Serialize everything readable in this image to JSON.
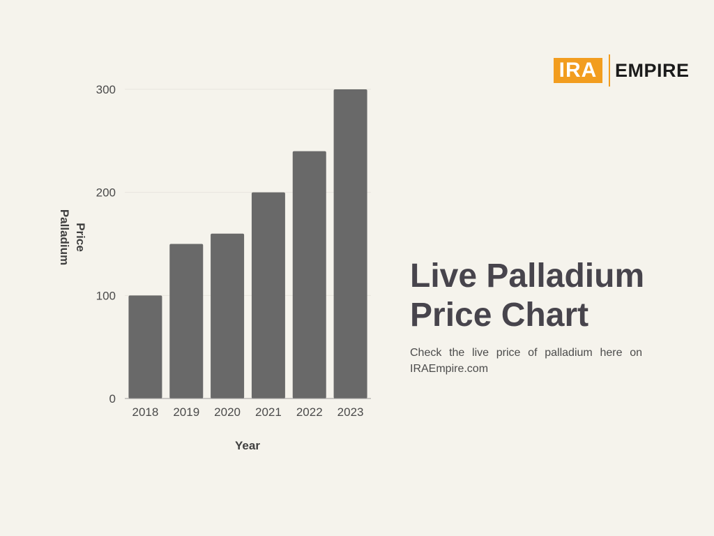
{
  "logo": {
    "brand_part1": "IRA",
    "brand_part2": "EMPIRE"
  },
  "heading": {
    "line1": "Live Palladium",
    "line2": "Price Chart"
  },
  "description": "Check the live price of palladium here on IRAEmpire.com",
  "colors": {
    "background": "#f5f3ec",
    "bar": "#696969",
    "accent": "#f29d1f",
    "heading": "#47444c",
    "gridline": "#e8e5de"
  },
  "chart_data": {
    "type": "bar",
    "categories": [
      "2018",
      "2019",
      "2020",
      "2021",
      "2022",
      "2023"
    ],
    "values": [
      100,
      150,
      160,
      200,
      240,
      300
    ],
    "title": "",
    "xlabel": "Year",
    "ylabel": "Palladium Price",
    "ylim": [
      0,
      300
    ],
    "yticks": [
      0,
      100,
      200,
      300
    ],
    "grid": true
  }
}
